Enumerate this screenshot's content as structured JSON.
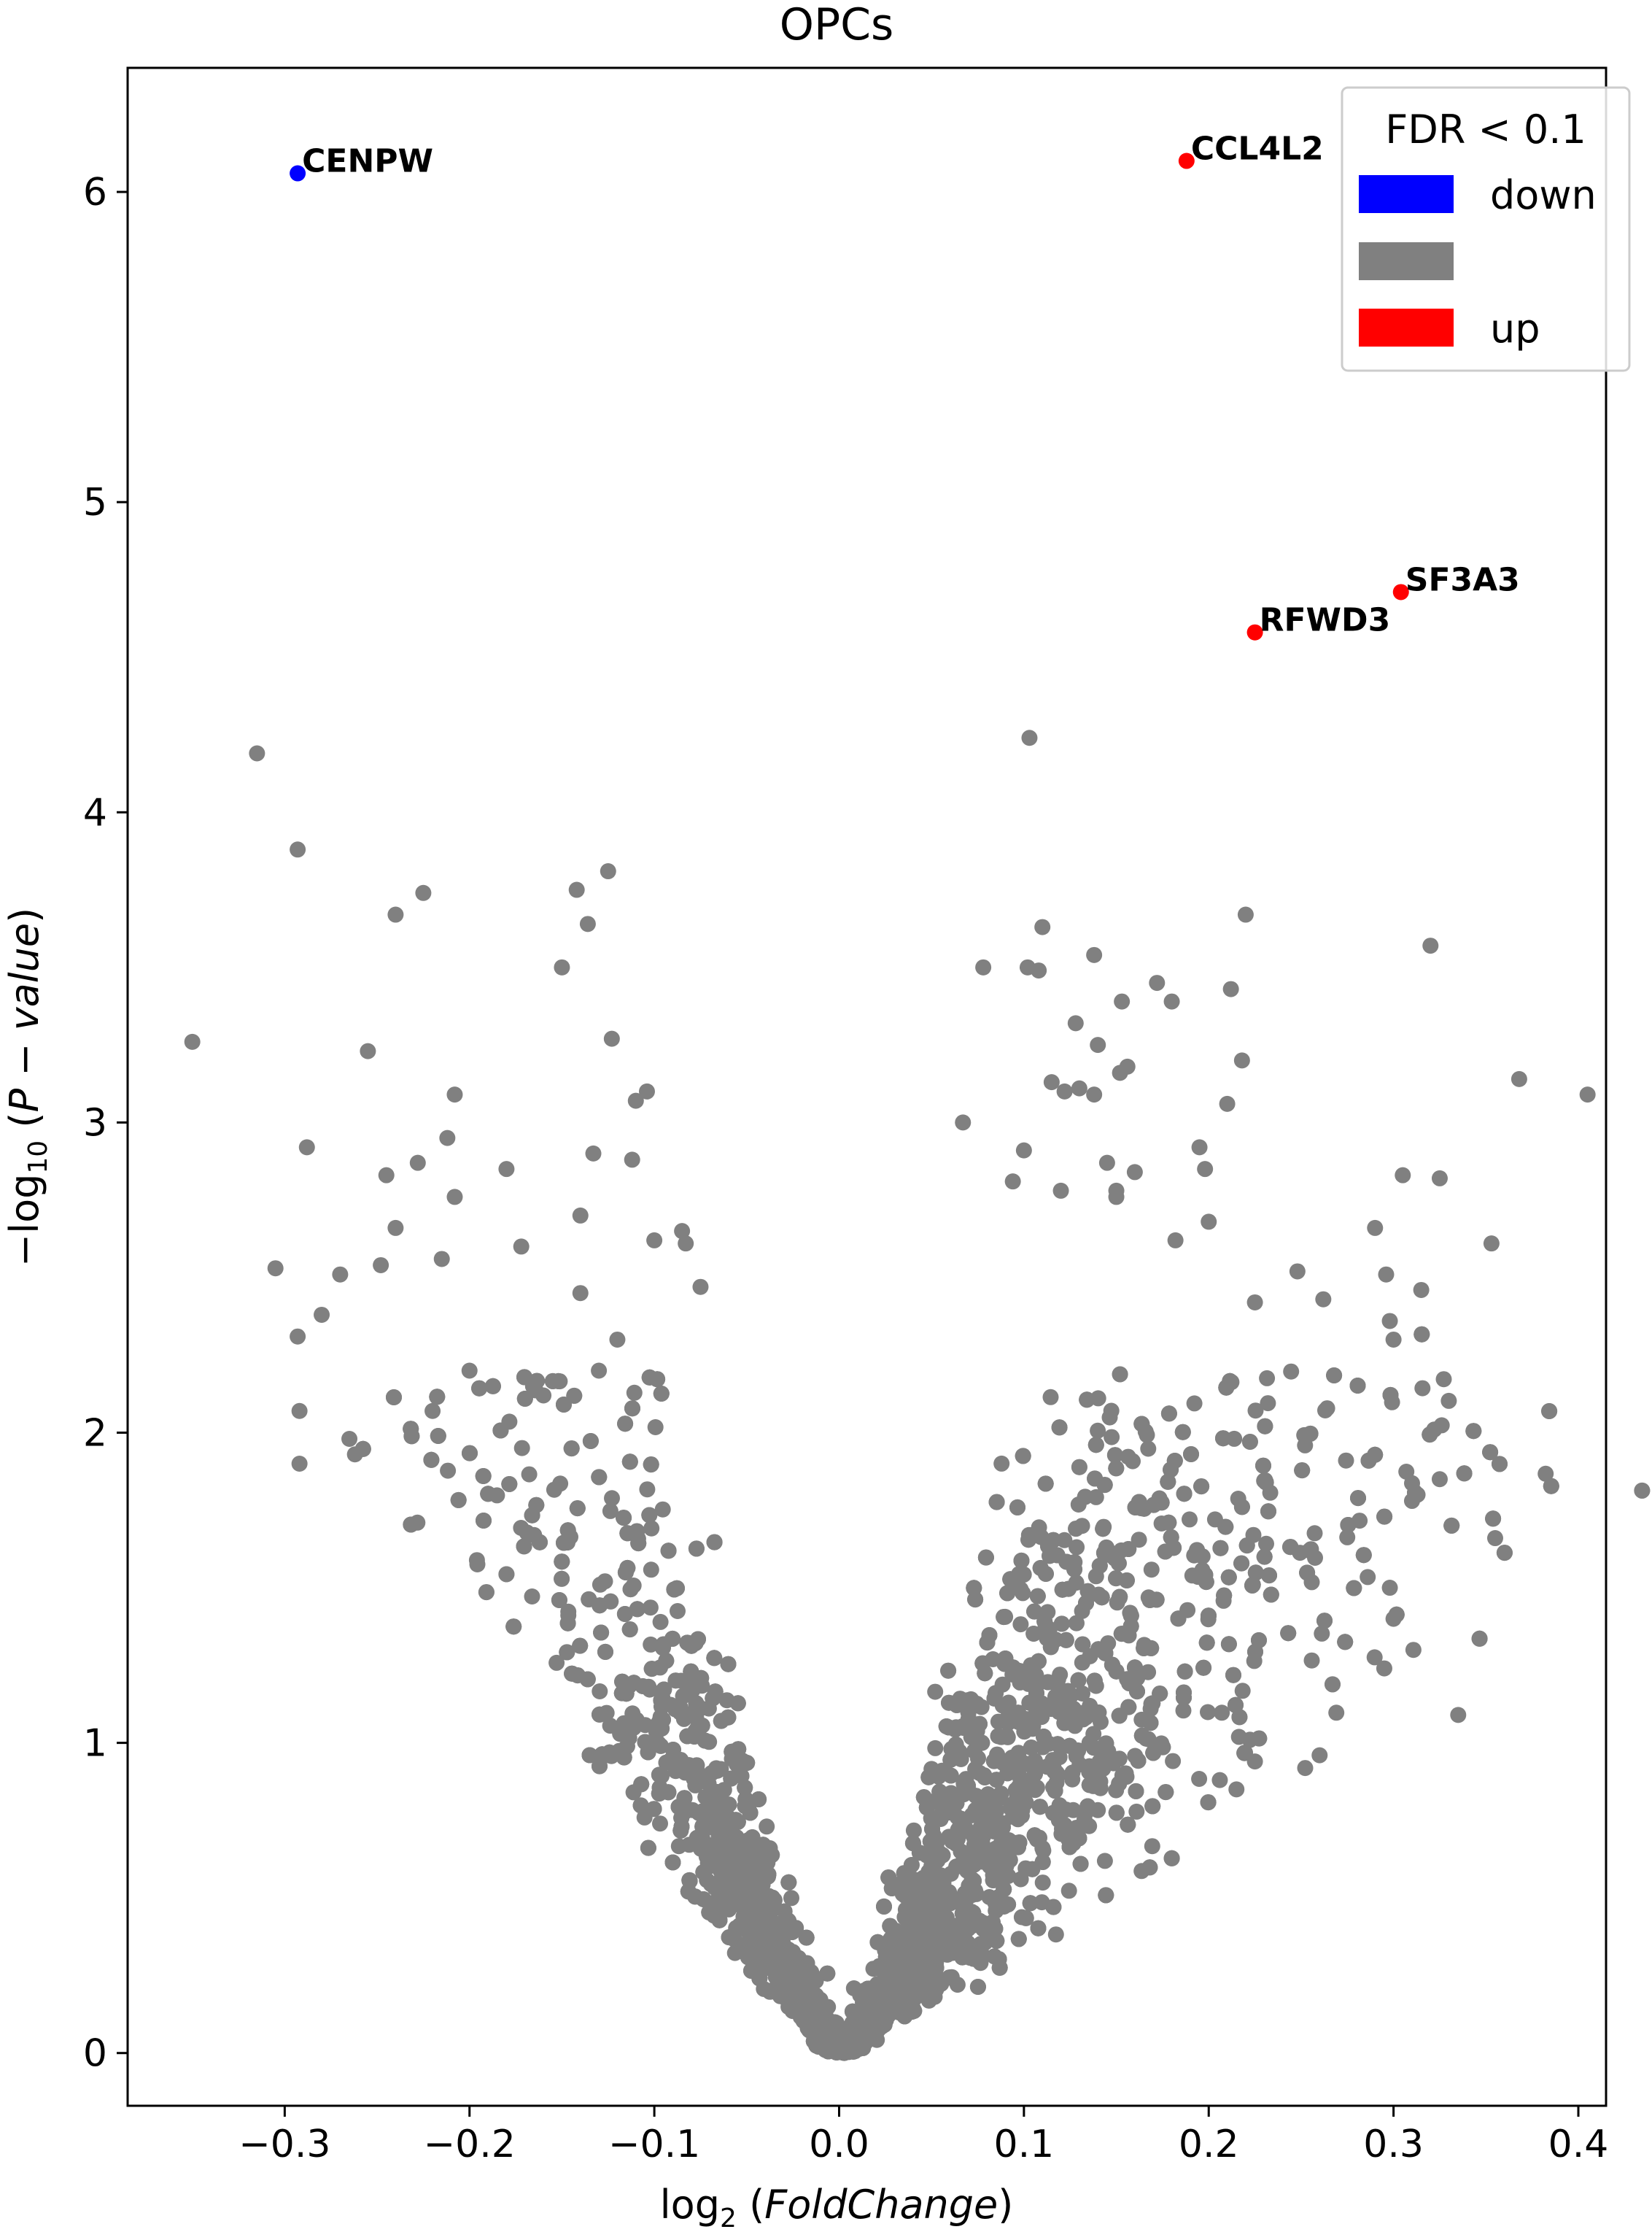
{
  "chart_data": {
    "type": "scatter",
    "title": "OPCs",
    "xlabel": {
      "prefix": "log",
      "sub": "2",
      "paren_open": "(",
      "italic": "FoldChange",
      "paren_close": ")"
    },
    "ylabel": {
      "prefix": "−log",
      "sub": "10",
      "paren_open": "(",
      "italic": "P − value",
      "paren_close": ")"
    },
    "xlim": [
      -0.385,
      0.415
    ],
    "ylim": [
      -0.17,
      6.4
    ],
    "xticks": [
      -0.3,
      -0.2,
      -0.1,
      0.0,
      0.1,
      0.2,
      0.3,
      0.4
    ],
    "xtick_labels": [
      "−0.3",
      "−0.2",
      "−0.1",
      "0.0",
      "0.1",
      "0.2",
      "0.3",
      "0.4"
    ],
    "yticks": [
      0,
      1,
      2,
      3,
      4,
      5,
      6
    ],
    "ytick_labels": [
      "0",
      "1",
      "2",
      "3",
      "4",
      "5",
      "6"
    ],
    "grid": false,
    "legend": {
      "title": "FDR < 0.1",
      "placement": "top-right",
      "entries": [
        {
          "label": "down",
          "color": "#0000ff"
        },
        {
          "label": "",
          "color": "#808080"
        },
        {
          "label": "up",
          "color": "#ff0000"
        }
      ]
    },
    "colors": {
      "down": "#0000ff",
      "ns": "#808080",
      "up": "#ff0000"
    },
    "highlighted": [
      {
        "gene": "CENPW",
        "x": -0.293,
        "y": 6.06,
        "group": "down"
      },
      {
        "gene": "CCL4L2",
        "x": 0.188,
        "y": 6.1,
        "group": "up"
      },
      {
        "gene": "SF3A3",
        "x": 0.304,
        "y": 4.71,
        "group": "up"
      },
      {
        "gene": "RFWD3",
        "x": 0.225,
        "y": 4.58,
        "group": "up"
      }
    ],
    "outliers": [
      [
        -0.35,
        3.26
      ],
      [
        -0.315,
        4.19
      ],
      [
        -0.305,
        2.53
      ],
      [
        -0.293,
        3.88
      ],
      [
        -0.293,
        2.31
      ],
      [
        -0.292,
        2.07
      ],
      [
        -0.292,
        1.9
      ],
      [
        -0.288,
        2.92
      ],
      [
        -0.28,
        2.38
      ],
      [
        -0.27,
        2.51
      ],
      [
        -0.265,
        1.98
      ],
      [
        -0.262,
        1.93
      ],
      [
        -0.255,
        3.23
      ],
      [
        -0.248,
        2.54
      ],
      [
        -0.245,
        2.83
      ],
      [
        -0.24,
        2.66
      ],
      [
        -0.24,
        3.67
      ],
      [
        -0.228,
        2.87
      ],
      [
        -0.225,
        3.74
      ],
      [
        -0.22,
        2.07
      ],
      [
        -0.215,
        2.56
      ],
      [
        -0.212,
        2.95
      ],
      [
        -0.208,
        3.09
      ],
      [
        -0.208,
        2.76
      ],
      [
        -0.2,
        2.2
      ],
      [
        -0.18,
        2.85
      ],
      [
        -0.172,
        2.6
      ],
      [
        -0.16,
        2.12
      ],
      [
        -0.15,
        3.5
      ],
      [
        -0.142,
        3.75
      ],
      [
        -0.14,
        2.45
      ],
      [
        -0.136,
        3.64
      ],
      [
        -0.133,
        2.9
      ],
      [
        -0.125,
        3.81
      ],
      [
        -0.123,
        3.27
      ],
      [
        -0.11,
        3.07
      ],
      [
        -0.104,
        3.1
      ],
      [
        -0.112,
        2.88
      ],
      [
        -0.1,
        2.62
      ],
      [
        -0.085,
        2.65
      ],
      [
        -0.083,
        2.61
      ],
      [
        -0.075,
        2.47
      ],
      [
        -0.14,
        2.7
      ],
      [
        -0.13,
        2.2
      ],
      [
        -0.12,
        2.3
      ],
      [
        0.067,
        3.0
      ],
      [
        0.078,
        3.5
      ],
      [
        0.103,
        4.24
      ],
      [
        0.11,
        3.63
      ],
      [
        0.102,
        3.5
      ],
      [
        0.108,
        3.49
      ],
      [
        0.115,
        3.13
      ],
      [
        0.122,
        3.1
      ],
      [
        0.13,
        3.11
      ],
      [
        0.128,
        3.32
      ],
      [
        0.138,
        3.09
      ],
      [
        0.14,
        3.25
      ],
      [
        0.138,
        3.54
      ],
      [
        0.152,
        3.16
      ],
      [
        0.156,
        3.18
      ],
      [
        0.153,
        3.39
      ],
      [
        0.15,
        2.78
      ],
      [
        0.172,
        3.45
      ],
      [
        0.18,
        3.39
      ],
      [
        0.182,
        2.62
      ],
      [
        0.195,
        2.92
      ],
      [
        0.198,
        2.85
      ],
      [
        0.2,
        2.68
      ],
      [
        0.21,
        3.06
      ],
      [
        0.212,
        3.43
      ],
      [
        0.218,
        3.2
      ],
      [
        0.22,
        3.67
      ],
      [
        0.16,
        2.84
      ],
      [
        0.145,
        2.87
      ],
      [
        0.15,
        2.76
      ],
      [
        0.12,
        2.78
      ],
      [
        0.094,
        2.81
      ],
      [
        0.1,
        2.91
      ],
      [
        0.225,
        2.42
      ],
      [
        0.248,
        2.52
      ],
      [
        0.262,
        2.43
      ],
      [
        0.29,
        2.66
      ],
      [
        0.296,
        2.51
      ],
      [
        0.3,
        2.3
      ],
      [
        0.305,
        2.83
      ],
      [
        0.315,
        2.46
      ],
      [
        0.32,
        3.57
      ],
      [
        0.322,
        2.01
      ],
      [
        0.325,
        2.82
      ],
      [
        0.298,
        2.36
      ],
      [
        0.325,
        1.85
      ],
      [
        0.353,
        2.61
      ],
      [
        0.355,
        1.66
      ],
      [
        0.368,
        3.14
      ],
      [
        0.405,
        3.09
      ],
      [
        0.335,
        1.09
      ],
      [
        0.298,
        1.5
      ],
      [
        0.3,
        1.4
      ],
      [
        0.313,
        1.8
      ],
      [
        0.31,
        1.78
      ],
      [
        0.295,
        1.24
      ],
      [
        0.26,
        0.96
      ],
      [
        0.225,
        0.94
      ],
      [
        0.215,
        0.85
      ],
      [
        0.206,
        0.88
      ]
    ]
  }
}
